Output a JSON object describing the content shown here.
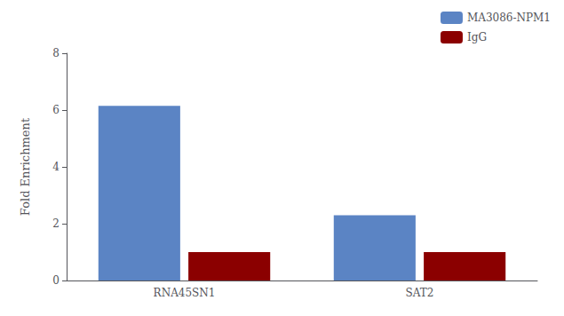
{
  "chart_data": {
    "type": "bar",
    "categories": [
      "RNA45SN1",
      "SAT2"
    ],
    "series": [
      {
        "name": "MA3086-NPM1",
        "color": "#5B84C4",
        "values": [
          6.15,
          2.3
        ]
      },
      {
        "name": "IgG",
        "color": "#8B0000",
        "values": [
          1.0,
          1.0
        ]
      }
    ],
    "ylabel": "Fold Enrichment",
    "ylim": [
      0,
      8
    ],
    "yticks": [
      0,
      2,
      4,
      6,
      8
    ],
    "grid": false,
    "legend": "upper right"
  }
}
